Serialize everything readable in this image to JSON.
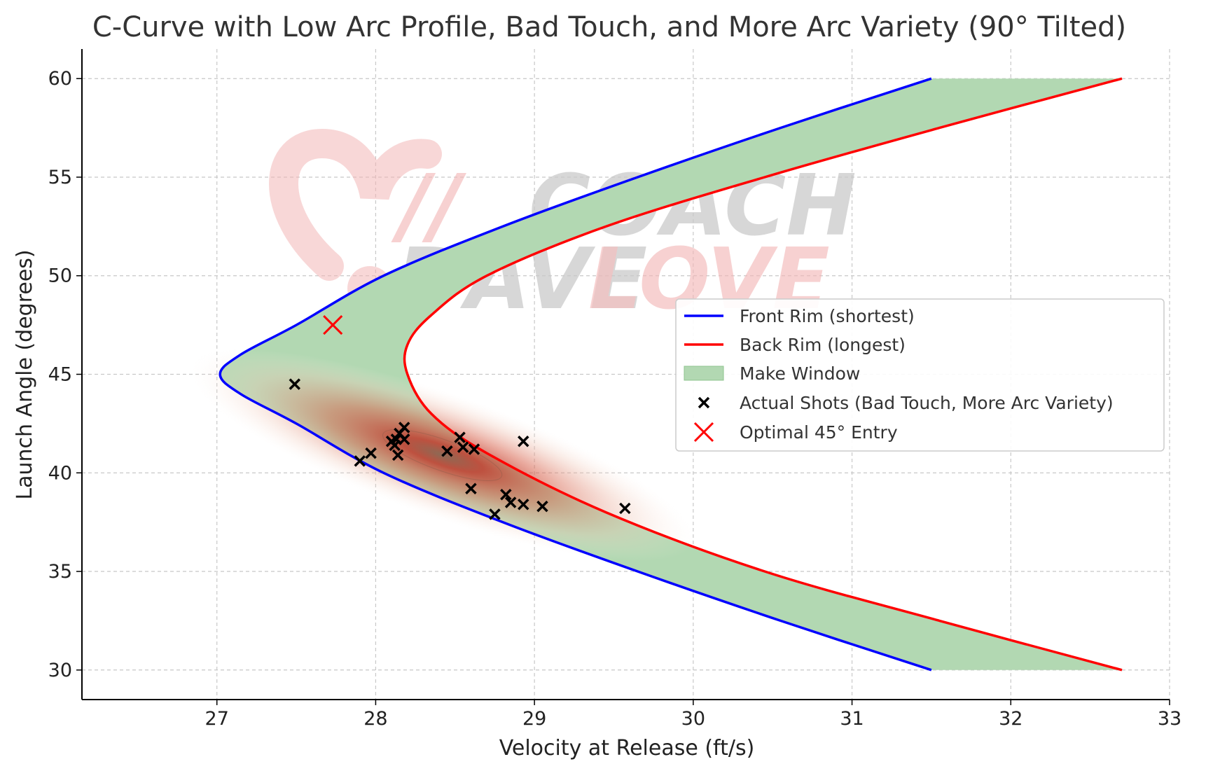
{
  "chart_data": {
    "type": "line",
    "title": "C-Curve with Low Arc Profile, Bad Touch, and More Arc Variety (90° Tilted)",
    "xlabel": "Velocity at Release (ft/s)",
    "ylabel": "Launch Angle (degrees)",
    "xlim": [
      26.15,
      33.0
    ],
    "ylim": [
      28.5,
      61.5
    ],
    "xticks": [
      27,
      28,
      29,
      30,
      31,
      32,
      33
    ],
    "yticks": [
      30,
      35,
      40,
      45,
      50,
      55,
      60
    ],
    "grid": true,
    "legend_position": "center-right",
    "watermark": {
      "line1_left": "//",
      "line1_right": "COACH",
      "line2_left": "DAVE",
      "line2_right": "LOVE"
    },
    "series": [
      {
        "name": "Front Rim (shortest)",
        "kind": "line",
        "color": "#0000ff",
        "x": [
          31.5,
          30.55,
          29.65,
          28.8,
          28.05,
          27.5,
          27.15,
          27.02,
          27.15,
          27.5,
          28.05,
          28.8,
          29.65,
          30.55,
          31.5
        ],
        "y": [
          60,
          57.5,
          55,
          52.5,
          50,
          47.5,
          46.0,
          45,
          44.0,
          42.5,
          40,
          37.5,
          35,
          32.5,
          30
        ]
      },
      {
        "name": "Back Rim (longest)",
        "kind": "line",
        "color": "#ff0000",
        "x": [
          32.7,
          31.55,
          30.45,
          29.45,
          28.7,
          28.35,
          28.2,
          28.2,
          28.35,
          28.7,
          29.45,
          30.45,
          31.55,
          32.7
        ],
        "y": [
          60,
          57.5,
          55,
          52.5,
          50,
          48,
          46.5,
          45,
          43,
          41,
          38,
          35,
          32.5,
          30
        ]
      },
      {
        "name": "Make Window",
        "kind": "band",
        "color": "#b2d8b2"
      },
      {
        "name": "Actual Shots (Bad Touch, More Arc Variety)",
        "kind": "scatter",
        "color": "#000000",
        "x": [
          27.49,
          28.15,
          28.18,
          28.1,
          28.13,
          28.12,
          28.18,
          28.14,
          27.97,
          27.9,
          28.45,
          28.53,
          28.62,
          28.55,
          28.93,
          28.6,
          28.82,
          28.85,
          28.93,
          29.05,
          28.75,
          29.57
        ],
        "y": [
          44.5,
          42.0,
          42.3,
          41.6,
          41.7,
          41.4,
          41.7,
          40.9,
          41.0,
          40.6,
          41.1,
          41.8,
          41.2,
          41.3,
          41.6,
          39.2,
          38.9,
          38.5,
          38.4,
          38.3,
          37.9,
          38.2
        ]
      },
      {
        "name": "Optimal 45° Entry",
        "kind": "marker",
        "color": "#ff0000",
        "x": [
          27.73
        ],
        "y": [
          47.5
        ]
      }
    ],
    "density": {
      "center_x": 28.42,
      "center_y": 40.9,
      "color": "#c0392b"
    }
  }
}
